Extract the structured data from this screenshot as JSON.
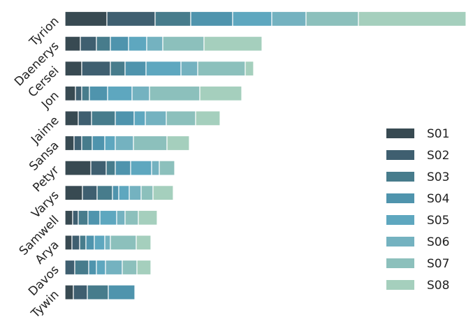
{
  "chart_data": {
    "type": "stacked-bar-horizontal",
    "categories": [
      "Tyrion",
      "Daenerys",
      "Cersei",
      "Jon",
      "Jaime",
      "Sansa",
      "Petyr",
      "Varys",
      "Samwell",
      "Arya",
      "Davos",
      "Tywin"
    ],
    "xlim": [
      0,
      574
    ],
    "legend": "right",
    "series": [
      {
        "name": "S01",
        "color": "#384a52",
        "values": [
          60,
          22,
          24,
          15,
          19,
          13,
          37,
          25,
          11,
          10,
          0,
          12
        ]
      },
      {
        "name": "S02",
        "color": "#3f5f70",
        "values": [
          69,
          23,
          41,
          9,
          19,
          11,
          22,
          21,
          8,
          11,
          14,
          20
        ]
      },
      {
        "name": "S03",
        "color": "#477c8c",
        "values": [
          51,
          20,
          21,
          11,
          34,
          15,
          13,
          22,
          14,
          9,
          20,
          30
        ]
      },
      {
        "name": "S04",
        "color": "#4f94ad",
        "values": [
          60,
          26,
          30,
          26,
          27,
          18,
          22,
          9,
          17,
          12,
          11,
          38
        ]
      },
      {
        "name": "S05",
        "color": "#5ea7bf",
        "values": [
          56,
          26,
          50,
          35,
          16,
          15,
          30,
          15,
          24,
          15,
          13,
          0
        ]
      },
      {
        "name": "S06",
        "color": "#74b2c0",
        "values": [
          49,
          23,
          24,
          25,
          30,
          26,
          11,
          17,
          12,
          8,
          24,
          0
        ]
      },
      {
        "name": "S07",
        "color": "#8cc0bc",
        "values": [
          75,
          59,
          68,
          72,
          42,
          48,
          22,
          17,
          19,
          37,
          21,
          0
        ]
      },
      {
        "name": "S08",
        "color": "#a5cfbd",
        "values": [
          154,
          83,
          12,
          60,
          35,
          32,
          0,
          29,
          27,
          21,
          20,
          0
        ]
      }
    ]
  }
}
